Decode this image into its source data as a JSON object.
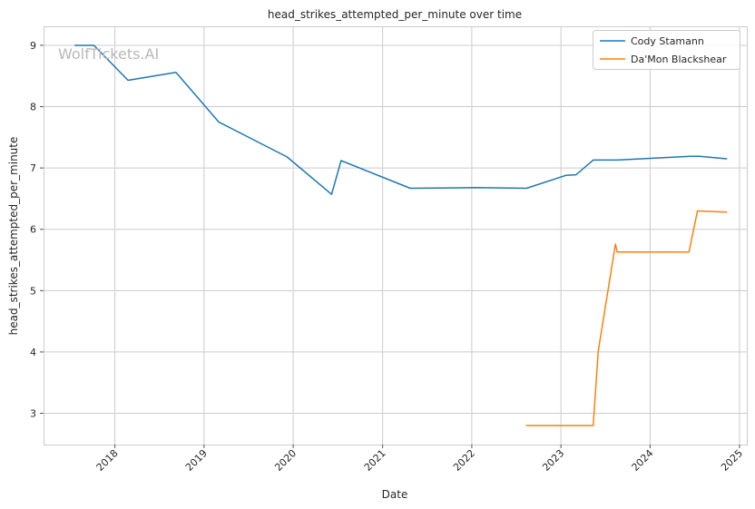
{
  "chart_data": {
    "type": "line",
    "title": "head_strikes_attempted_per_minute over time",
    "xlabel": "Date",
    "ylabel": "head_strikes_attempted_per_minute",
    "watermark": "WolfTickets.AI",
    "x_axis": {
      "kind": "date",
      "range": [
        "2017-03-15",
        "2025-01-31"
      ],
      "ticks": [
        "2018",
        "2019",
        "2020",
        "2021",
        "2022",
        "2023",
        "2024",
        "2025"
      ]
    },
    "y_axis": {
      "range": [
        2.49,
        9.31
      ],
      "ticks": [
        3,
        4,
        5,
        6,
        7,
        8,
        9
      ]
    },
    "grid": true,
    "legend_position": "top-right",
    "series": [
      {
        "name": "Cody Stamann",
        "color": "#1f77b4",
        "points": [
          [
            "2017-07-22",
            9.0
          ],
          [
            "2017-10-07",
            9.0
          ],
          [
            "2018-02-24",
            8.43
          ],
          [
            "2018-09-08",
            8.56
          ],
          [
            "2019-03-02",
            7.75
          ],
          [
            "2019-12-07",
            7.18
          ],
          [
            "2020-06-06",
            6.57
          ],
          [
            "2020-07-15",
            7.12
          ],
          [
            "2021-04-24",
            6.67
          ],
          [
            "2022-01-15",
            6.68
          ],
          [
            "2022-08-13",
            6.67
          ],
          [
            "2023-01-21",
            6.88
          ],
          [
            "2023-03-04",
            6.89
          ],
          [
            "2023-05-13",
            7.13
          ],
          [
            "2023-08-19",
            7.13
          ],
          [
            "2024-06-15",
            7.19
          ],
          [
            "2024-07-20",
            7.19
          ],
          [
            "2024-11-09",
            7.15
          ]
        ]
      },
      {
        "name": "Da'Mon Blackshear",
        "color": "#ff7f0e",
        "points": [
          [
            "2022-08-13",
            2.8
          ],
          [
            "2023-05-13",
            2.8
          ],
          [
            "2023-06-03",
            4.02
          ],
          [
            "2023-08-12",
            5.76
          ],
          [
            "2023-08-19",
            5.63
          ],
          [
            "2024-06-08",
            5.63
          ],
          [
            "2024-07-13",
            6.3
          ],
          [
            "2024-11-09",
            6.28
          ]
        ]
      }
    ]
  }
}
